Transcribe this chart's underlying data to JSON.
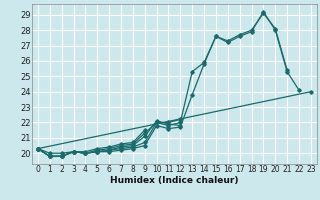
{
  "title": "",
  "xlabel": "Humidex (Indice chaleur)",
  "bg_color": "#cce8ec",
  "grid_color": "#ffffff",
  "line_color": "#1a6b6b",
  "xlim": [
    -0.5,
    23.5
  ],
  "ylim": [
    19.3,
    29.7
  ],
  "yticks": [
    20,
    21,
    22,
    23,
    24,
    25,
    26,
    27,
    28,
    29
  ],
  "xticks": [
    0,
    1,
    2,
    3,
    4,
    5,
    6,
    7,
    8,
    9,
    10,
    11,
    12,
    13,
    14,
    15,
    16,
    17,
    18,
    19,
    20,
    21,
    22,
    23
  ],
  "series": [
    [
      20.3,
      19.8,
      19.8,
      20.1,
      20.0,
      20.1,
      20.1,
      20.2,
      20.3,
      20.5,
      21.8,
      21.6,
      21.7,
      23.8,
      25.8,
      27.6,
      27.2,
      27.6,
      27.9,
      29.2,
      28.0,
      25.3,
      24.1,
      null
    ],
    [
      20.3,
      19.8,
      19.8,
      20.1,
      20.0,
      20.1,
      20.2,
      20.3,
      20.4,
      20.7,
      22.0,
      21.8,
      22.0,
      25.3,
      25.9,
      27.6,
      27.3,
      27.7,
      28.0,
      29.1,
      28.1,
      25.4,
      null,
      null
    ],
    [
      20.3,
      19.8,
      19.8,
      20.1,
      20.0,
      20.1,
      20.2,
      20.4,
      20.5,
      21.1,
      22.1,
      21.9,
      21.8,
      null,
      null,
      null,
      null,
      null,
      null,
      null,
      null,
      null,
      null,
      null
    ],
    [
      20.3,
      19.8,
      19.8,
      20.1,
      20.0,
      20.2,
      20.3,
      20.5,
      20.6,
      21.3,
      22.0,
      22.0,
      22.2,
      null,
      null,
      null,
      null,
      null,
      null,
      null,
      null,
      null,
      null,
      null
    ],
    [
      20.3,
      20.0,
      20.0,
      20.1,
      20.1,
      20.3,
      20.4,
      20.6,
      20.7,
      21.5,
      null,
      null,
      null,
      null,
      null,
      null,
      null,
      null,
      null,
      null,
      null,
      null,
      null,
      null
    ],
    [
      20.3,
      null,
      null,
      null,
      null,
      null,
      null,
      null,
      null,
      null,
      null,
      null,
      null,
      null,
      null,
      null,
      null,
      null,
      null,
      null,
      null,
      null,
      null,
      24.0
    ]
  ]
}
